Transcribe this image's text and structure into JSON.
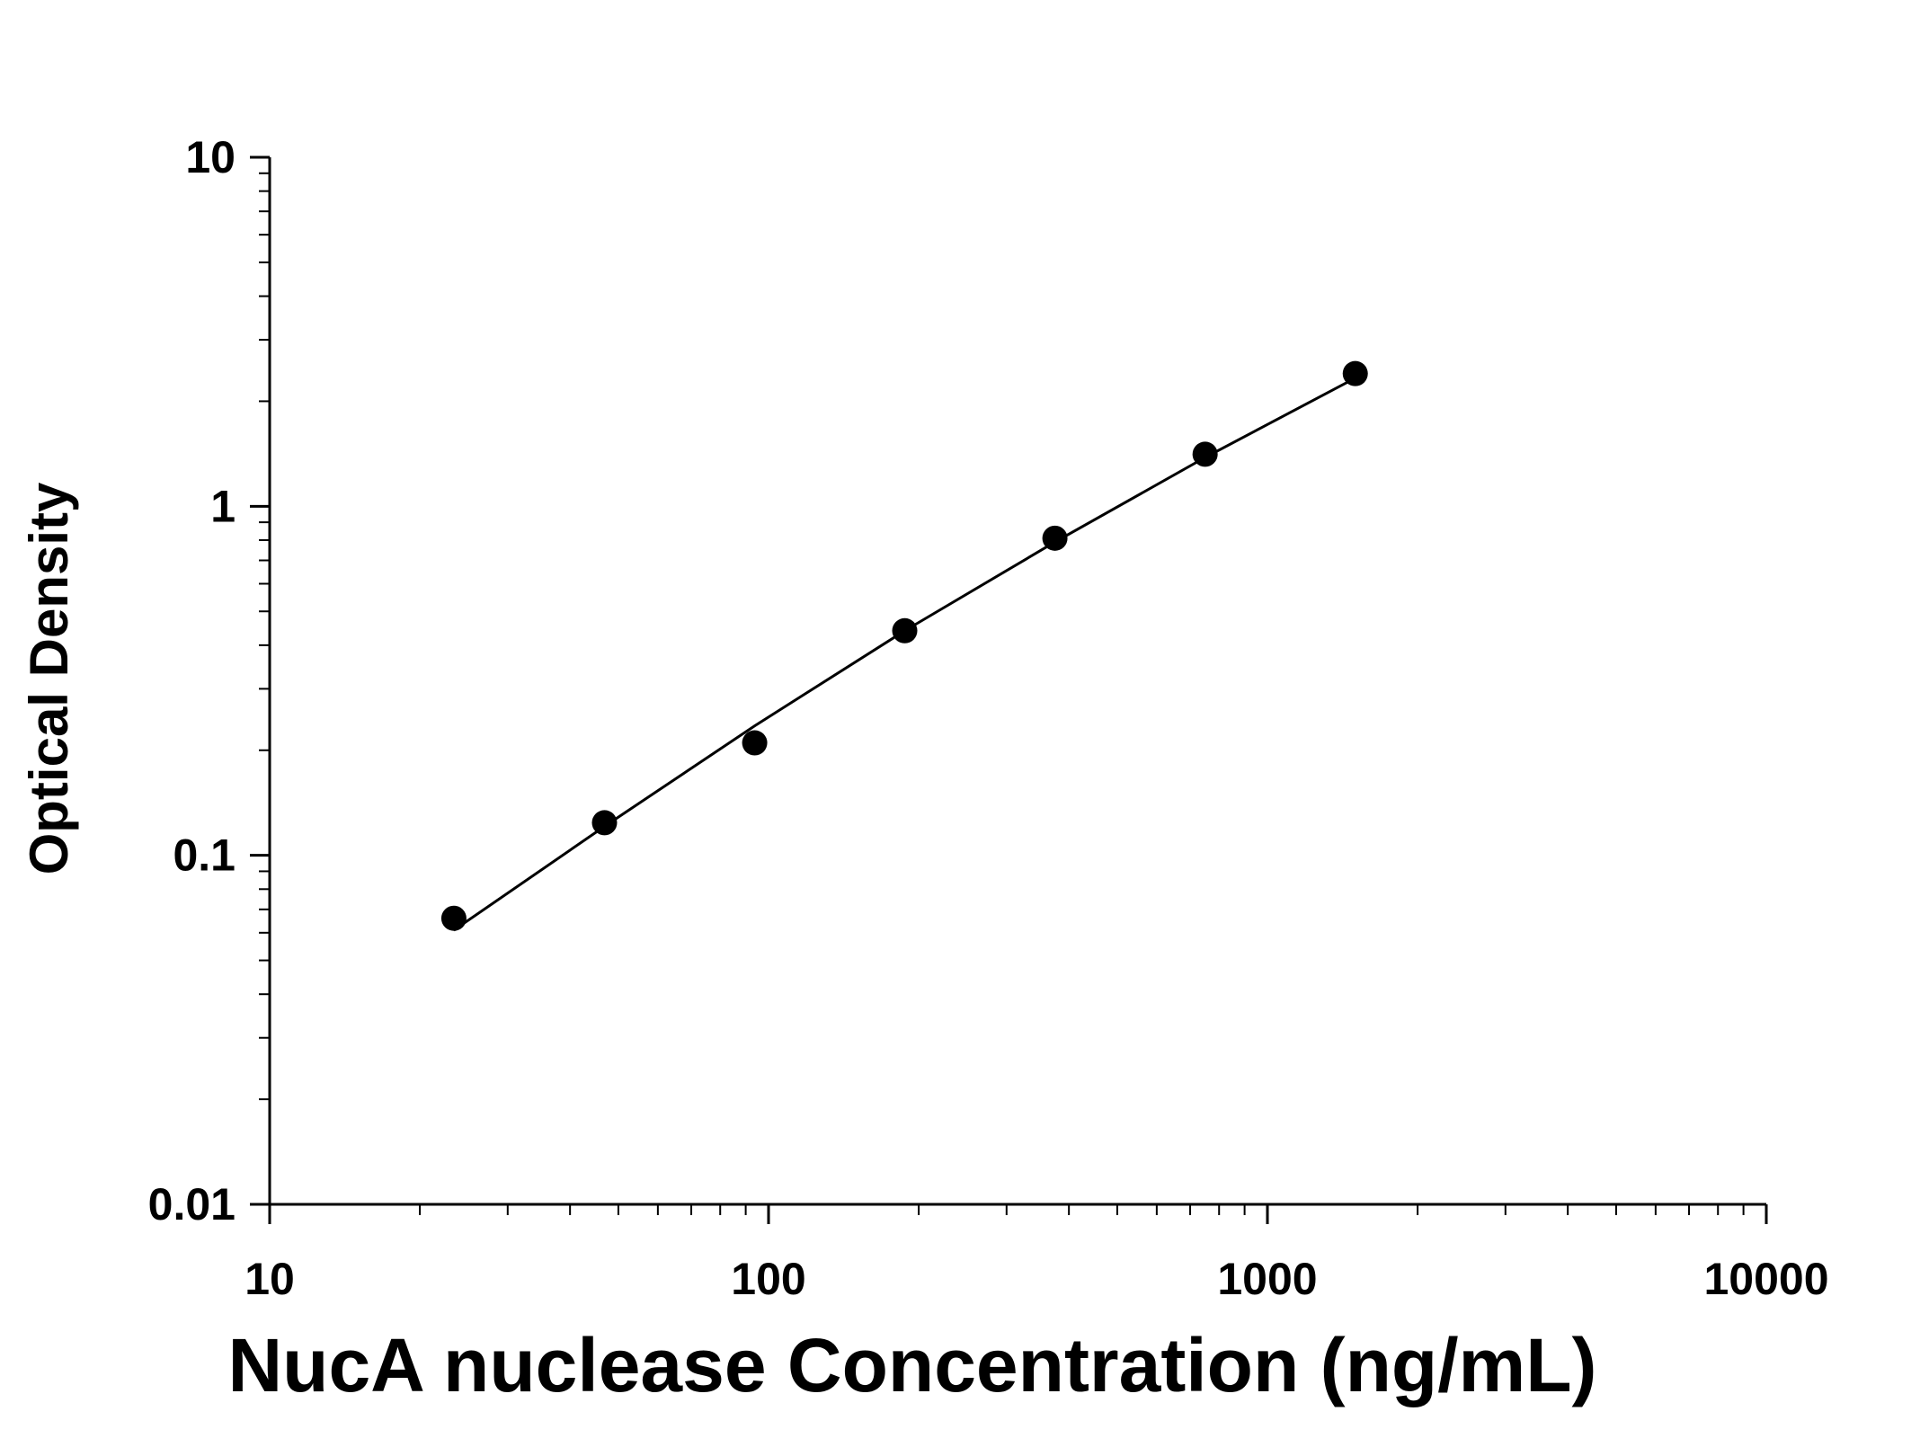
{
  "chart_data": {
    "type": "scatter",
    "xlabel": "NucA nuclease Concentration (ng/mL)",
    "ylabel": "Optical Density",
    "x_scale": "log",
    "y_scale": "log",
    "xlim": [
      10,
      10000
    ],
    "ylim": [
      0.01,
      10
    ],
    "x_tick_labels": [
      "10",
      "100",
      "1000",
      "10000"
    ],
    "y_tick_labels": [
      "0.01",
      "0.1",
      "1",
      "10"
    ],
    "x_tick_values": [
      10,
      100,
      1000,
      10000
    ],
    "y_tick_values": [
      0.01,
      0.1,
      1,
      10
    ],
    "grid": false,
    "points": [
      {
        "x": 23.4,
        "y": 0.066
      },
      {
        "x": 46.9,
        "y": 0.124
      },
      {
        "x": 93.8,
        "y": 0.21
      },
      {
        "x": 187.5,
        "y": 0.44
      },
      {
        "x": 375,
        "y": 0.81
      },
      {
        "x": 750,
        "y": 1.41
      },
      {
        "x": 1500,
        "y": 2.4
      }
    ],
    "fit_curve": [
      {
        "x": 23.4,
        "y": 0.061
      },
      {
        "x": 46.9,
        "y": 0.121
      },
      {
        "x": 93.8,
        "y": 0.235
      },
      {
        "x": 187.5,
        "y": 0.44
      },
      {
        "x": 375,
        "y": 0.79
      },
      {
        "x": 750,
        "y": 1.38
      },
      {
        "x": 1500,
        "y": 2.33
      }
    ],
    "colors": {
      "marker": "#000000",
      "line": "#000000",
      "axis": "#000000"
    }
  }
}
